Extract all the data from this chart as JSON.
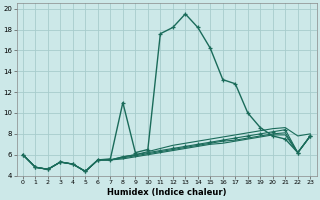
{
  "xlabel": "Humidex (Indice chaleur)",
  "bg_color": "#cce8e8",
  "grid_color": "#a8cccc",
  "line_color": "#1a6b5a",
  "xlim": [
    -0.5,
    23.5
  ],
  "ylim": [
    4,
    20.5
  ],
  "yticks": [
    4,
    6,
    8,
    10,
    12,
    14,
    16,
    18,
    20
  ],
  "xticks": [
    0,
    1,
    2,
    3,
    4,
    5,
    6,
    7,
    8,
    9,
    10,
    11,
    12,
    13,
    14,
    15,
    16,
    17,
    18,
    19,
    20,
    21,
    22,
    23
  ],
  "lines": [
    {
      "x": [
        0,
        1,
        2,
        3,
        4,
        5,
        6,
        7,
        8,
        9,
        10,
        11,
        12,
        13,
        14,
        15,
        16,
        17,
        18,
        19,
        20,
        21,
        22,
        23
      ],
      "y": [
        6.0,
        4.8,
        4.6,
        5.3,
        5.1,
        4.4,
        5.5,
        5.6,
        11.0,
        6.2,
        6.5,
        17.6,
        18.2,
        19.5,
        18.2,
        16.2,
        13.2,
        12.8,
        10.0,
        8.6,
        7.8,
        7.5,
        6.2,
        7.8
      ],
      "marker": "+",
      "lw": 1.0
    },
    {
      "x": [
        0,
        1,
        2,
        3,
        4,
        5,
        6,
        7,
        8,
        9,
        10,
        11,
        12,
        13,
        14,
        15,
        16,
        17,
        18,
        19,
        20,
        21,
        22,
        23
      ],
      "y": [
        6.0,
        4.8,
        4.6,
        5.3,
        5.1,
        4.4,
        5.5,
        5.5,
        5.8,
        6.0,
        6.3,
        6.6,
        6.9,
        7.1,
        7.3,
        7.5,
        7.7,
        7.9,
        8.1,
        8.3,
        8.5,
        8.6,
        7.8,
        8.0
      ],
      "marker": null,
      "lw": 0.8
    },
    {
      "x": [
        0,
        1,
        2,
        3,
        4,
        5,
        6,
        7,
        8,
        9,
        10,
        11,
        12,
        13,
        14,
        15,
        16,
        17,
        18,
        19,
        20,
        21,
        22,
        23
      ],
      "y": [
        6.0,
        4.8,
        4.6,
        5.3,
        5.1,
        4.4,
        5.5,
        5.5,
        5.8,
        6.0,
        6.2,
        6.4,
        6.6,
        6.8,
        7.0,
        7.2,
        7.4,
        7.6,
        7.8,
        8.0,
        8.2,
        8.4,
        6.2,
        7.8
      ],
      "marker": "+",
      "lw": 0.8
    },
    {
      "x": [
        0,
        1,
        2,
        3,
        4,
        5,
        6,
        7,
        8,
        9,
        10,
        11,
        12,
        13,
        14,
        15,
        16,
        17,
        18,
        19,
        20,
        21,
        22,
        23
      ],
      "y": [
        6.0,
        4.8,
        4.6,
        5.3,
        5.1,
        4.4,
        5.5,
        5.5,
        5.7,
        5.9,
        6.1,
        6.3,
        6.5,
        6.7,
        6.9,
        7.1,
        7.3,
        7.4,
        7.6,
        7.8,
        8.0,
        8.1,
        6.2,
        7.8
      ],
      "marker": null,
      "lw": 0.8
    },
    {
      "x": [
        0,
        1,
        2,
        3,
        4,
        5,
        6,
        7,
        8,
        9,
        10,
        11,
        12,
        13,
        14,
        15,
        16,
        17,
        18,
        19,
        20,
        21,
        22,
        23
      ],
      "y": [
        6.0,
        4.8,
        4.6,
        5.3,
        5.1,
        4.4,
        5.5,
        5.5,
        5.6,
        5.8,
        6.0,
        6.2,
        6.4,
        6.6,
        6.8,
        7.0,
        7.1,
        7.3,
        7.5,
        7.7,
        7.9,
        7.9,
        6.2,
        7.8
      ],
      "marker": null,
      "lw": 0.8
    }
  ]
}
